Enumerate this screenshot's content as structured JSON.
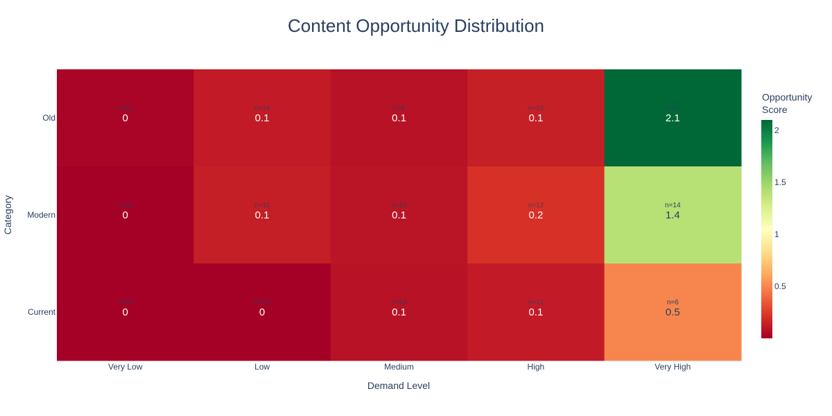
{
  "chart_data": {
    "type": "heatmap",
    "title": "Content Opportunity Distribution",
    "xlabel": "Demand Level",
    "ylabel": "Category",
    "x": [
      "Very Low",
      "Low",
      "Medium",
      "High",
      "Very High"
    ],
    "y": [
      "Old",
      "Modern",
      "Current"
    ],
    "z": [
      [
        0.02,
        0.12,
        0.08,
        0.14,
        2.1
      ],
      [
        0.0,
        0.13,
        0.09,
        0.21,
        1.4
      ],
      [
        0.0,
        0.0,
        0.08,
        0.12,
        0.5
      ]
    ],
    "value_labels": [
      [
        "0",
        "0.1",
        "0.1",
        "0.1",
        "2.1"
      ],
      [
        "0",
        "0.1",
        "0.1",
        "0.2",
        "1.4"
      ],
      [
        "0",
        "0",
        "0.1",
        "0.1",
        "0.5"
      ]
    ],
    "count_labels": [
      [
        "n=13",
        "n=14",
        "n=8",
        "n=15",
        "n=6"
      ],
      [
        "n=14",
        "n=11",
        "n=16",
        "n=12",
        "n=14"
      ],
      [
        "n=16",
        "n=12",
        "n=18",
        "n=12",
        "n=6"
      ]
    ],
    "colorscale": "RdYlGn",
    "zlim": [
      0,
      2.1
    ],
    "colorbar": {
      "title_line1": "Opportunity",
      "title_line2": "Score",
      "ticks": [
        0.5,
        1,
        1.5,
        2
      ],
      "tick_labels": [
        "0.5",
        "1",
        "1.5",
        "2"
      ]
    },
    "grid": false
  }
}
